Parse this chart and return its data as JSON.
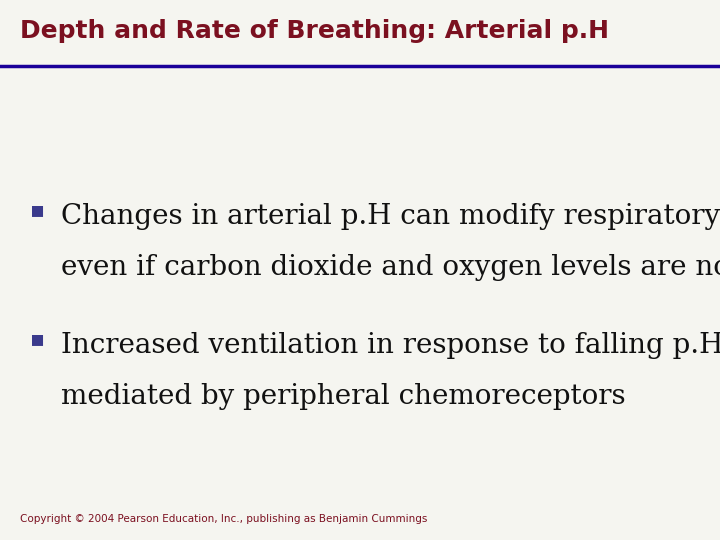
{
  "title": "Depth and Rate of Breathing: Arterial p.H",
  "title_color": "#7B1020",
  "title_fontsize": 18,
  "separator_color": "#1A0099",
  "separator_linewidth": 2.5,
  "background_color": "#F5F5F0",
  "bullet_color": "#3A3A8C",
  "bullet_char": "▪",
  "bullet_points": [
    {
      "line1": "Changes in arterial p.H can modify respiratory rate",
      "line2": "even if carbon dioxide and oxygen levels are normal"
    },
    {
      "line1": "Increased ventilation in response to falling p.H is",
      "line2": "mediated by peripheral chemoreceptors"
    }
  ],
  "bullet_fontsize": 20,
  "bullet_text_color": "#111111",
  "copyright_text": "Copyright © 2004 Pearson Education, Inc., publishing as Benjamin Cummings",
  "copyright_color": "#7B1020",
  "copyright_fontsize": 7.5,
  "fig_width": 7.2,
  "fig_height": 5.4,
  "dpi": 100
}
